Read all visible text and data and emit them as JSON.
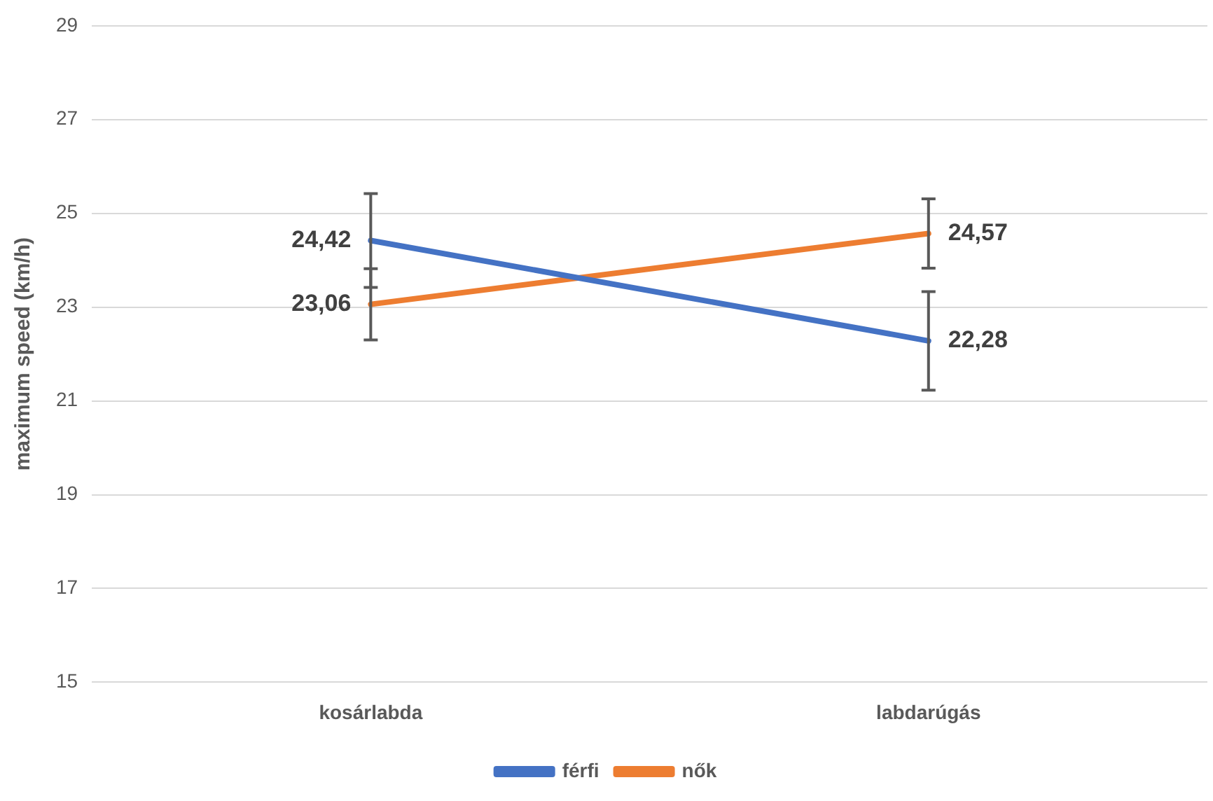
{
  "chart_data": {
    "type": "line",
    "ylabel": "maximum speed (km/h)",
    "categories": [
      "kosárlabda",
      "labdarúgás"
    ],
    "series": [
      {
        "name": "férfi",
        "color": "#4472c4",
        "values": [
          24.42,
          22.28
        ],
        "errors": [
          1.0,
          1.05
        ],
        "value_labels": [
          "24,42",
          "22,28"
        ]
      },
      {
        "name": "nők",
        "color": "#ed7d31",
        "values": [
          23.06,
          24.57
        ],
        "errors": [
          0.76,
          0.74
        ],
        "value_labels": [
          "23,06",
          "24,57"
        ]
      }
    ],
    "ylim": [
      15,
      29
    ],
    "yticks": [
      15,
      17,
      19,
      21,
      23,
      25,
      27,
      29
    ],
    "grid": "y",
    "legend": "bottom",
    "marker": "none",
    "line_style": "solid"
  }
}
